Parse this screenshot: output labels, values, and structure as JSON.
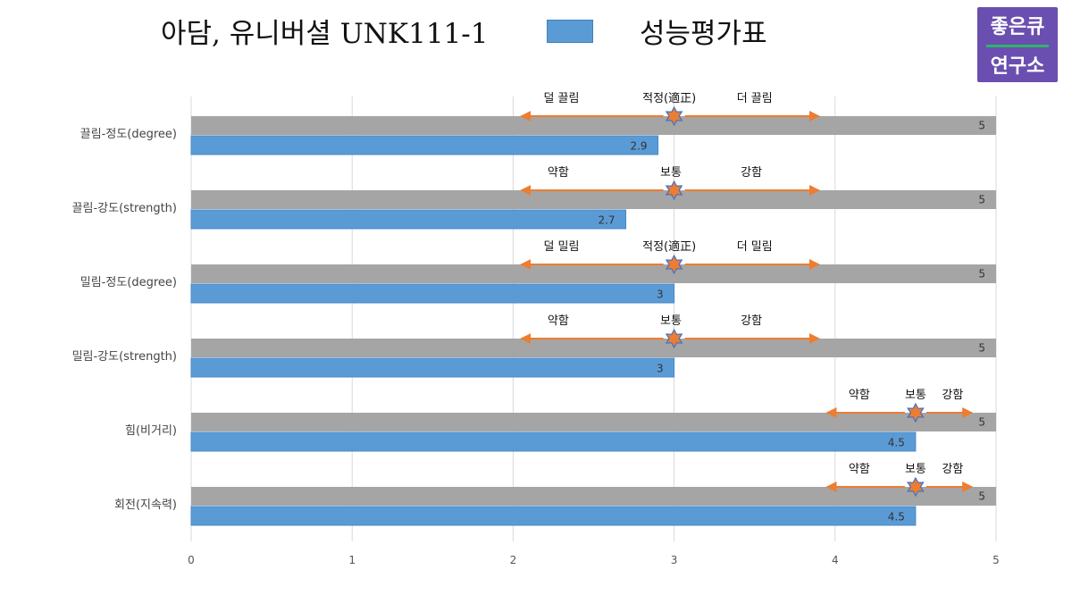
{
  "header": {
    "title": "아담, 유니버셜 UNK111-1",
    "legend_label": "성능평가표",
    "legend_color": "#5b9bd5",
    "logo_line1": "좋은큐",
    "logo_line2": "연구소"
  },
  "colors": {
    "max_bar": "#a5a5a5",
    "value_bar": "#5b9bd5",
    "arrow": "#ed7d31",
    "star": "#ed7d31",
    "star_outline": "#4472c4",
    "grid": "#d9d9d9"
  },
  "chart_data": {
    "type": "bar",
    "orientation": "horizontal",
    "categories": [
      "끌림-정도(degree)",
      "끌림-강도(strength)",
      "밀림-정도(degree)",
      "밀림-강도(strength)",
      "힘(비거리)",
      "회전(지속력)"
    ],
    "series": [
      {
        "values": [
          5,
          5,
          5,
          5,
          5,
          5
        ]
      },
      {
        "name": "성능평가표",
        "values": [
          2.9,
          2.7,
          3,
          3,
          4.5,
          4.5
        ]
      }
    ],
    "data_labels": [
      [
        "5",
        "5",
        "5",
        "5",
        "5",
        "5"
      ],
      [
        "2.9",
        "2.7",
        "3",
        "3",
        "4.5",
        "4.5"
      ]
    ],
    "xlim": [
      0,
      5
    ],
    "x_ticks": [
      "0",
      "1",
      "2",
      "3",
      "4",
      "5"
    ],
    "grid": true,
    "annotations": [
      {
        "reference": 3,
        "arrow_from": 2.05,
        "arrow_to": 3.9,
        "labels": [
          {
            "text": "덜 끌림",
            "at": 2.3
          },
          {
            "text": "적정(適正)",
            "at": 2.97
          },
          {
            "text": "더 끌림",
            "at": 3.5
          }
        ]
      },
      {
        "reference": 3,
        "arrow_from": 2.05,
        "arrow_to": 3.9,
        "labels": [
          {
            "text": "약함",
            "at": 2.28
          },
          {
            "text": "보통",
            "at": 2.98
          },
          {
            "text": "강함",
            "at": 3.48
          }
        ]
      },
      {
        "reference": 3,
        "arrow_from": 2.05,
        "arrow_to": 3.9,
        "labels": [
          {
            "text": "덜 밀림",
            "at": 2.3
          },
          {
            "text": "적정(適正)",
            "at": 2.97
          },
          {
            "text": "더 밀림",
            "at": 3.5
          }
        ]
      },
      {
        "reference": 3,
        "arrow_from": 2.05,
        "arrow_to": 3.9,
        "labels": [
          {
            "text": "약함",
            "at": 2.28
          },
          {
            "text": "보통",
            "at": 2.98
          },
          {
            "text": "강함",
            "at": 3.48
          }
        ]
      },
      {
        "reference": 4.5,
        "arrow_from": 3.95,
        "arrow_to": 4.85,
        "labels": [
          {
            "text": "약함",
            "at": 4.15
          },
          {
            "text": "보통",
            "at": 4.5
          },
          {
            "text": "강함",
            "at": 4.73
          }
        ]
      },
      {
        "reference": 4.5,
        "arrow_from": 3.95,
        "arrow_to": 4.85,
        "labels": [
          {
            "text": "약함",
            "at": 4.15
          },
          {
            "text": "보통",
            "at": 4.5
          },
          {
            "text": "강함",
            "at": 4.73
          }
        ]
      }
    ]
  }
}
